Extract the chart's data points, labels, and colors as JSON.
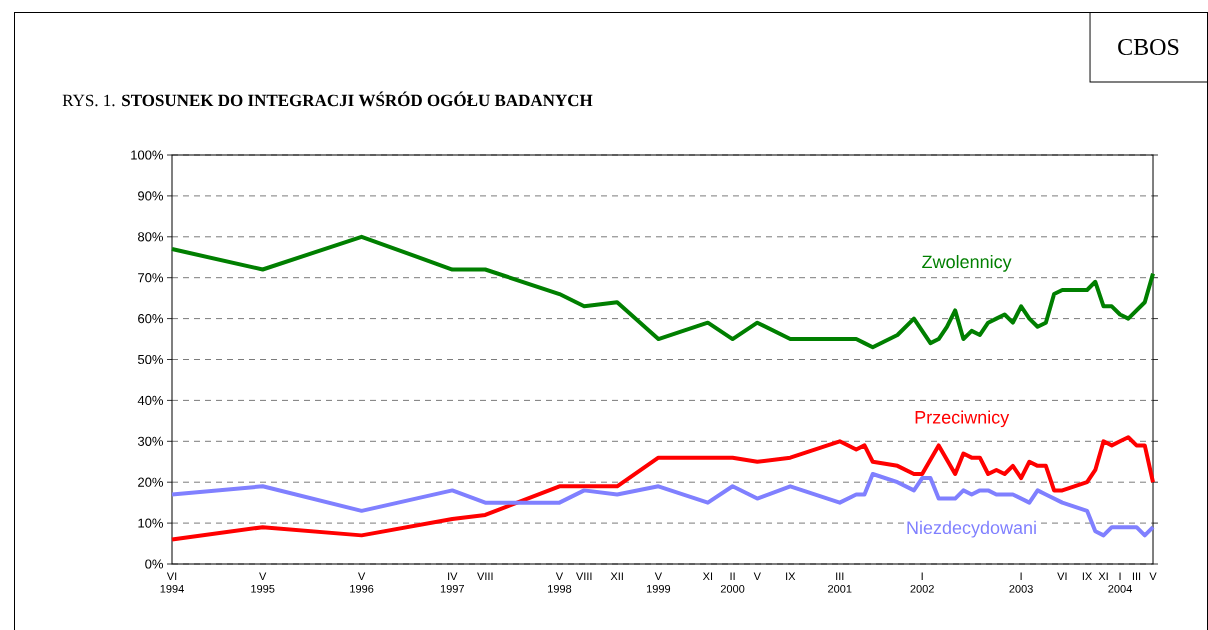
{
  "chart_data": {
    "type": "line",
    "title": "RYS. 1. **STOSUNEK DO INTEGRACJI WŚRÓD OGÓŁU BADANYCH**",
    "annotations": [
      "CBOS"
    ],
    "xlim": [
      "1994-06",
      "2004-05"
    ],
    "xticks": [
      {
        "value": "1994-06",
        "label": "VI 1994"
      },
      {
        "value": "1995-05",
        "label": "V 1995"
      },
      {
        "value": "1996-05",
        "label": "V 1996"
      },
      {
        "value": "1997-04",
        "label": "IV 1997"
      },
      {
        "value": "1997-08",
        "label": "VIII"
      },
      {
        "value": "1998-05",
        "label": "V 1998"
      },
      {
        "value": "1998-08",
        "label": "VIII"
      },
      {
        "value": "1998-12",
        "label": "XII"
      },
      {
        "value": "1999-05",
        "label": "V 1999"
      },
      {
        "value": "1999-11",
        "label": "XI"
      },
      {
        "value": "2000-02",
        "label": "II 2000"
      },
      {
        "value": "2000-05",
        "label": "V"
      },
      {
        "value": "2000-09",
        "label": "IX"
      },
      {
        "value": "2001-03",
        "label": "III 2001"
      },
      {
        "value": "2002-01",
        "label": "I 2002"
      },
      {
        "value": "2003-01",
        "label": "I 2003"
      },
      {
        "value": "2003-06",
        "label": "VI"
      },
      {
        "value": "2003-09",
        "label": "IX"
      },
      {
        "value": "2003-11",
        "label": "XI"
      },
      {
        "value": "2004-01",
        "label": "I 2004"
      },
      {
        "value": "2004-03",
        "label": "III"
      },
      {
        "value": "2004-05",
        "label": "V"
      }
    ],
    "ylim": [
      0,
      100
    ],
    "yticks": [
      {
        "value": 0,
        "label": "0%"
      },
      {
        "value": 10,
        "label": "10%"
      },
      {
        "value": 20,
        "label": "20%"
      },
      {
        "value": 30,
        "label": "30%"
      },
      {
        "value": 40,
        "label": "40%"
      },
      {
        "value": 50,
        "label": "50%"
      },
      {
        "value": 60,
        "label": "60%"
      },
      {
        "value": 70,
        "label": "70%"
      },
      {
        "value": 80,
        "label": "80%"
      },
      {
        "value": 90,
        "label": "90%"
      },
      {
        "value": 100,
        "label": "100%"
      }
    ],
    "grid": "y",
    "series": [
      {
        "name": "Zwolennicy",
        "color": "#007f00",
        "x": [
          "1994-06",
          "1995-05",
          "1996-05",
          "1997-04",
          "1997-08",
          "1998-05",
          "1998-08",
          "1998-12",
          "1999-05",
          "1999-11",
          "2000-02",
          "2000-05",
          "2000-09",
          "2001-03",
          "2001-05",
          "2001-06",
          "2001-07",
          "2001-10",
          "2001-12",
          "2002-02",
          "2002-03",
          "2002-04",
          "2002-05",
          "2002-06",
          "2002-07",
          "2002-08",
          "2002-09",
          "2002-10",
          "2002-11",
          "2002-12",
          "2003-01",
          "2003-02",
          "2003-03",
          "2003-04",
          "2003-05",
          "2003-06",
          "2003-09",
          "2003-10",
          "2003-11",
          "2003-12",
          "2004-01",
          "2004-02",
          "2004-04",
          "2004-05"
        ],
        "values": [
          77,
          72,
          80,
          72,
          72,
          66,
          63,
          64,
          55,
          59,
          55,
          59,
          55,
          55,
          55,
          54,
          53,
          56,
          60,
          54,
          55,
          58,
          62,
          55,
          57,
          56,
          59,
          60,
          61,
          59,
          63,
          60,
          58,
          59,
          66,
          67,
          67,
          69,
          63,
          63,
          61,
          60,
          64,
          71
        ]
      },
      {
        "name": "Przeciwnicy",
        "color": "#ff0000",
        "x": [
          "1994-06",
          "1995-05",
          "1996-05",
          "1997-04",
          "1997-08",
          "1998-05",
          "1998-08",
          "1998-12",
          "1999-05",
          "1999-11",
          "2000-02",
          "2000-05",
          "2000-09",
          "2001-03",
          "2001-05",
          "2001-06",
          "2001-07",
          "2001-10",
          "2001-12",
          "2002-01",
          "2002-03",
          "2002-05",
          "2002-06",
          "2002-07",
          "2002-08",
          "2002-09",
          "2002-10",
          "2002-11",
          "2002-12",
          "2003-01",
          "2003-02",
          "2003-03",
          "2003-04",
          "2003-05",
          "2003-06",
          "2003-09",
          "2003-10",
          "2003-11",
          "2003-12",
          "2004-01",
          "2004-02",
          "2004-03",
          "2004-04",
          "2004-05"
        ],
        "values": [
          6,
          9,
          7,
          11,
          12,
          19,
          19,
          19,
          26,
          26,
          26,
          25,
          26,
          30,
          28,
          29,
          25,
          24,
          22,
          22,
          29,
          22,
          27,
          26,
          26,
          22,
          23,
          22,
          24,
          21,
          25,
          24,
          24,
          18,
          18,
          20,
          23,
          30,
          29,
          30,
          31,
          29,
          29,
          20
        ]
      },
      {
        "name": "Niezdecydowani",
        "color": "#8080ff",
        "x": [
          "1994-06",
          "1995-05",
          "1996-05",
          "1997-04",
          "1997-08",
          "1998-05",
          "1998-08",
          "1998-12",
          "1999-05",
          "1999-11",
          "2000-02",
          "2000-05",
          "2000-09",
          "2001-03",
          "2001-05",
          "2001-06",
          "2001-07",
          "2001-10",
          "2001-12",
          "2002-01",
          "2002-02",
          "2002-03",
          "2002-05",
          "2002-06",
          "2002-07",
          "2002-08",
          "2002-09",
          "2002-10",
          "2002-12",
          "2003-02",
          "2003-03",
          "2003-04",
          "2003-06",
          "2003-09",
          "2003-10",
          "2003-11",
          "2003-12",
          "2004-03",
          "2004-04",
          "2004-05"
        ],
        "values": [
          17,
          19,
          13,
          18,
          15,
          15,
          18,
          17,
          19,
          15,
          19,
          16,
          19,
          15,
          17,
          17,
          22,
          20,
          18,
          21,
          21,
          16,
          16,
          18,
          17,
          18,
          18,
          17,
          17,
          15,
          18,
          17,
          15,
          13,
          8,
          7,
          9,
          9,
          7,
          9
        ]
      }
    ]
  }
}
